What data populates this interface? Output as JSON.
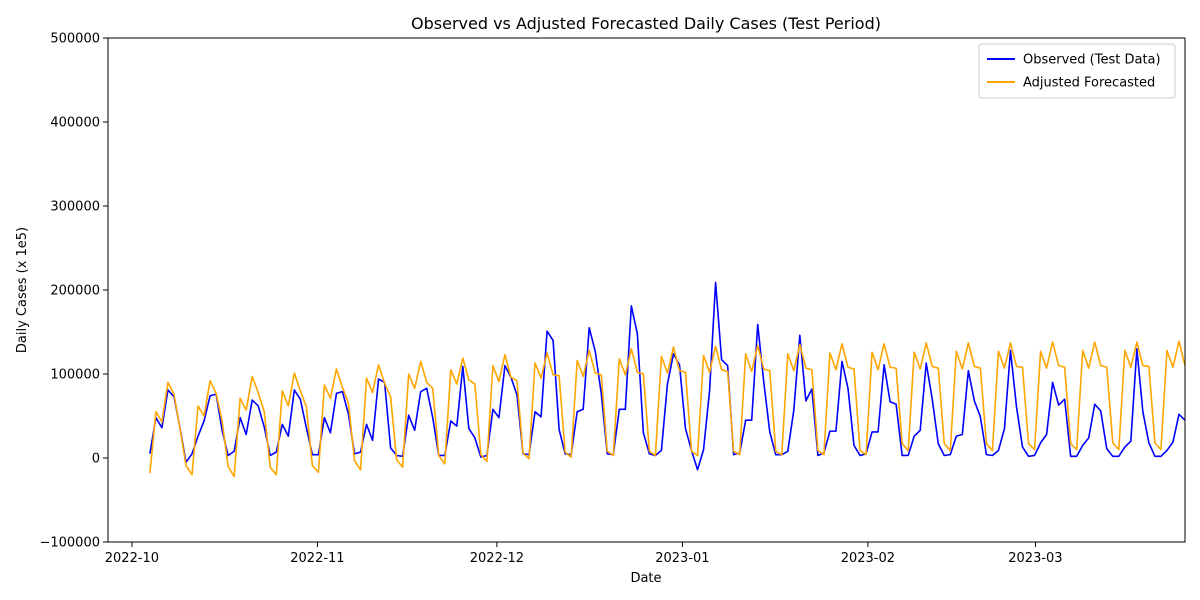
{
  "chart_data": {
    "type": "line",
    "title": "Observed vs Adjusted Forecasted Daily Cases (Test Period)",
    "xlabel": "Date",
    "ylabel": "Daily Cases (x 1e5)",
    "ylim": [
      -100000,
      500000
    ],
    "xlim": [
      "2022-09-27",
      "2023-03-26"
    ],
    "legend_position": "top-right",
    "grid": false,
    "x_ticks": [
      "2022-10-01",
      "2022-11-01",
      "2022-12-01",
      "2023-01-01",
      "2023-02-01",
      "2023-03-01"
    ],
    "x_tick_labels": [
      "2022-10",
      "2022-11",
      "2022-12",
      "2023-01",
      "2023-02",
      "2023-03"
    ],
    "y_ticks": [
      -100000,
      0,
      100000,
      200000,
      300000,
      400000,
      500000
    ],
    "y_tick_labels": [
      "−100000",
      "0",
      "100000",
      "200000",
      "300000",
      "400000",
      "500000"
    ],
    "x_start": "2022-10-04",
    "x_end": "2023-03-26",
    "series": [
      {
        "name": "Observed (Test Data)",
        "color": "#0000ff",
        "values": [
          5000,
          48000,
          36000,
          81000,
          73000,
          36000,
          -5000,
          5000,
          26000,
          44000,
          74000,
          76000,
          33000,
          3000,
          8000,
          48000,
          28000,
          69000,
          62000,
          37000,
          3000,
          7000,
          40000,
          26000,
          81000,
          70000,
          36000,
          4000,
          4000,
          48000,
          30000,
          77000,
          79000,
          52000,
          5000,
          7000,
          40000,
          21000,
          94000,
          90000,
          12000,
          3000,
          2000,
          51000,
          33000,
          79000,
          83000,
          48000,
          3000,
          3000,
          44000,
          38000,
          109000,
          35000,
          24000,
          1000,
          3000,
          58000,
          48000,
          110000,
          96000,
          75000,
          5000,
          4000,
          55000,
          49000,
          151000,
          140000,
          34000,
          5000,
          4000,
          55000,
          58000,
          155000,
          127000,
          77000,
          5000,
          4000,
          58000,
          58000,
          181000,
          148000,
          30000,
          5000,
          3000,
          9000,
          88000,
          124000,
          111000,
          35000,
          9000,
          -14000,
          10000,
          80000,
          209000,
          117000,
          110000,
          4000,
          6000,
          45000,
          45000,
          159000,
          91000,
          31000,
          4000,
          4000,
          8000,
          57000,
          146000,
          68000,
          82000,
          3000,
          6000,
          32000,
          32000,
          115000,
          83000,
          15000,
          3000,
          5000,
          31000,
          31000,
          111000,
          67000,
          64000,
          3000,
          3000,
          26000,
          33000,
          113000,
          70000,
          17000,
          3000,
          4000,
          26000,
          28000,
          104000,
          68000,
          49000,
          4000,
          3000,
          9000,
          35000,
          128000,
          61000,
          13000,
          2000,
          3000,
          18000,
          28000,
          90000,
          63000,
          70000,
          2000,
          2000,
          15000,
          24000,
          64000,
          56000,
          11000,
          2000,
          2000,
          13000,
          20000,
          130000,
          55000,
          18000,
          2000,
          2000,
          9000,
          19000,
          52000,
          45000
        ]
      },
      {
        "name": "Adjusted Forecasted",
        "color": "#ffa500",
        "values": [
          -18000,
          55000,
          43000,
          90000,
          76000,
          35000,
          -9000,
          -20000,
          62000,
          50000,
          92000,
          77000,
          44000,
          -10000,
          -22000,
          71000,
          57000,
          97000,
          78000,
          55000,
          -11000,
          -20000,
          80000,
          62000,
          101000,
          80000,
          61000,
          -9000,
          -17000,
          87000,
          71000,
          106000,
          84000,
          65000,
          -3000,
          -14000,
          95000,
          78000,
          111000,
          89000,
          73000,
          -2000,
          -11000,
          100000,
          83000,
          115000,
          90000,
          83000,
          3000,
          -7000,
          105000,
          88000,
          119000,
          93000,
          88000,
          4000,
          -4000,
          110000,
          91000,
          123000,
          96000,
          92000,
          6000,
          -1000,
          113000,
          95000,
          125000,
          99000,
          98000,
          7000,
          1000,
          116000,
          97000,
          128000,
          101000,
          99000,
          8000,
          3000,
          118000,
          99000,
          130000,
          102000,
          100000,
          8000,
          3000,
          121000,
          101000,
          132000,
          104000,
          102000,
          8000,
          3000,
          122000,
          102000,
          133000,
          105000,
          103000,
          8000,
          4000,
          124000,
          103000,
          134000,
          106000,
          104000,
          8000,
          4000,
          124000,
          104000,
          135000,
          107000,
          105000,
          9000,
          4000,
          125000,
          105000,
          136000,
          108000,
          106000,
          9000,
          4000,
          126000,
          105000,
          136000,
          108000,
          107000,
          17000,
          9000,
          126000,
          106000,
          137000,
          109000,
          107000,
          17000,
          9000,
          127000,
          106000,
          137000,
          109000,
          107000,
          17000,
          9000,
          127000,
          107000,
          137000,
          109000,
          108000,
          17000,
          10000,
          127000,
          107000,
          138000,
          110000,
          108000,
          17000,
          10000,
          128000,
          107000,
          138000,
          110000,
          108000,
          18000,
          10000,
          128000,
          108000,
          138000,
          110000,
          109000,
          18000,
          10000,
          128000,
          108000,
          139000,
          110000
        ]
      }
    ]
  }
}
